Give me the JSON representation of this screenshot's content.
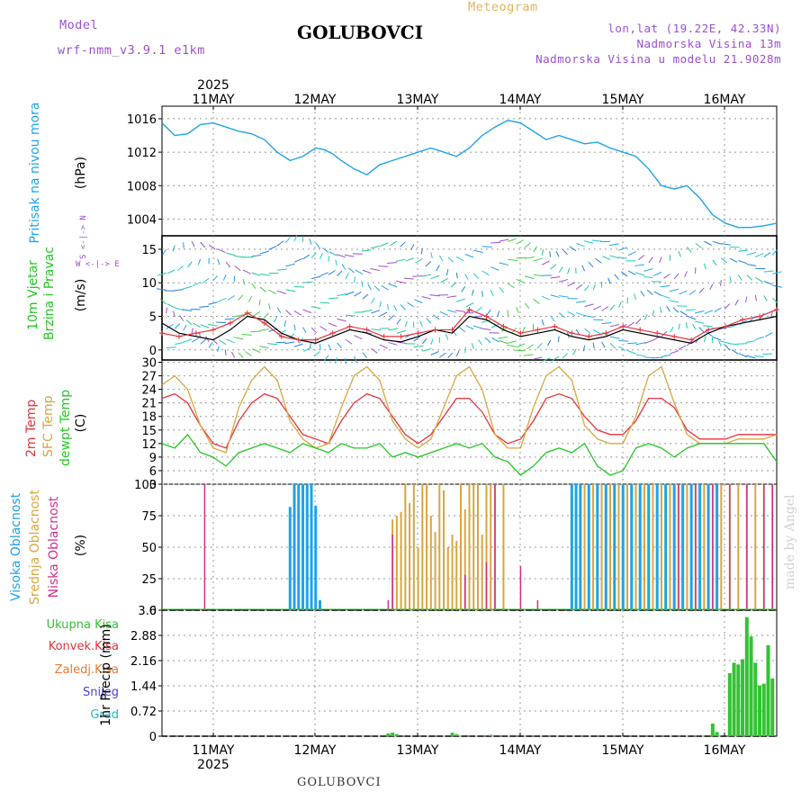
{
  "header": {
    "model_label": "Model",
    "model_name": "wrf-nmm_v3.9.1 e1km",
    "product": "Meteogram",
    "station": "GOLUBOVCI",
    "coords": "lon,lat (19.22E, 42.33N)",
    "altitude": "Nadmorska Visina 13m",
    "model_altitude": "Nadmorska Visina u modelu 21.9028m",
    "footer_station": "GOLUBOVCI",
    "watermark": "made by Angel"
  },
  "axes": {
    "year": "2025",
    "days": [
      "11MAY",
      "12MAY",
      "13MAY",
      "14MAY",
      "15MAY",
      "16MAY"
    ]
  },
  "panel_labels": {
    "pressure": [
      "Pritisak na nivou mora",
      "(hPa)"
    ],
    "wind": [
      "10m Vjetar",
      "Brzina i Pravac",
      "(m/s)",
      "W <-|-> E",
      "S <-|-> N"
    ],
    "temp": [
      "2m Temp",
      "SFC Temp",
      "dewpt Temp",
      "(C)"
    ],
    "cloud": [
      "Visoka Oblacnost",
      "Srednja Oblacnost",
      "Niska Oblacnost",
      "(%)"
    ],
    "precip": [
      "Ukupna Kisa",
      "Konvek.Kisa",
      "Zaledj.Kisa",
      "Snijeg",
      "Grad",
      "1hr Precip (mm)"
    ]
  },
  "colors": {
    "pressure": "#1ea3e8",
    "temp2m": "#e8323c",
    "sfc": "#daa540",
    "dew": "#22c822",
    "high_cloud": "#1ea3e8",
    "mid_cloud": "#daa540",
    "low_cloud": "#d0308a",
    "rain": "#33c233",
    "conv": "#e8323c",
    "frz": "#f07830",
    "snow": "#4444dd",
    "grad": "#22bbbb",
    "model_label": "#9c4fd0",
    "wind_label": "#22c822"
  },
  "chart_data": [
    {
      "type": "line",
      "name": "pressure",
      "ylabel": "(hPa)",
      "yticks": [
        1004,
        1008,
        1012,
        1016
      ],
      "ylim": [
        1002,
        1017.5
      ],
      "xlim_hours": [
        0,
        144
      ],
      "x_hours": [
        0,
        3,
        6,
        9,
        12,
        15,
        18,
        21,
        24,
        27,
        30,
        33,
        36,
        38,
        40,
        42,
        45,
        48,
        51,
        54,
        57,
        60,
        63,
        66,
        69,
        72,
        75,
        78,
        81,
        84,
        87,
        90,
        93,
        96,
        99,
        102,
        105,
        108,
        111,
        114,
        117,
        120,
        123,
        126,
        129,
        132,
        135,
        138,
        141,
        144
      ],
      "values": [
        1015.5,
        1014.0,
        1014.2,
        1015.3,
        1015.5,
        1015.0,
        1014.5,
        1014.2,
        1013.5,
        1012.0,
        1011.0,
        1011.5,
        1012.5,
        1012.3,
        1011.8,
        1011.0,
        1010.0,
        1009.3,
        1010.5,
        1011.0,
        1011.5,
        1012.0,
        1012.5,
        1012.0,
        1011.5,
        1012.5,
        1014.0,
        1015.0,
        1015.8,
        1015.5,
        1014.5,
        1013.5,
        1014.0,
        1013.5,
        1013.0,
        1013.2,
        1012.5,
        1012.0,
        1011.5,
        1010.0,
        1008.0,
        1007.6,
        1008.0,
        1006.5,
        1004.5,
        1003.5,
        1003.0,
        1003.0,
        1003.2,
        1003.5
      ]
    },
    {
      "type": "line",
      "name": "wind",
      "ylabel": "(m/s)",
      "yticks": [
        0,
        5,
        10,
        15
      ],
      "ylim": [
        -1.5,
        17
      ],
      "x_hours": [
        0,
        4,
        8,
        12,
        16,
        20,
        24,
        28,
        32,
        36,
        40,
        44,
        48,
        52,
        56,
        60,
        64,
        68,
        72,
        76,
        80,
        84,
        88,
        92,
        96,
        100,
        104,
        108,
        112,
        116,
        120,
        124,
        128,
        132,
        136,
        140,
        144
      ],
      "series": [
        {
          "values": [
            4.0,
            2.5,
            2.0,
            1.5,
            3.0,
            5.0,
            4.5,
            2.5,
            1.5,
            1.0,
            2.0,
            3.0,
            2.5,
            1.5,
            1.2,
            2.0,
            3.0,
            2.5,
            5.0,
            4.5,
            3.0,
            2.0,
            2.5,
            3.0,
            2.0,
            1.5,
            2.0,
            3.0,
            2.5,
            2.0,
            1.5,
            1.0,
            2.5,
            3.5,
            4.0,
            4.5,
            5.0
          ]
        },
        {
          "values": [
            2.5,
            2.0,
            2.5,
            3.0,
            4.0,
            5.5,
            4.0,
            2.0,
            1.5,
            1.5,
            2.5,
            3.5,
            3.0,
            2.0,
            2.0,
            2.5,
            3.0,
            3.0,
            6.0,
            5.0,
            3.5,
            2.5,
            3.0,
            3.5,
            2.5,
            2.0,
            2.5,
            3.5,
            3.0,
            2.5,
            2.0,
            1.5,
            3.0,
            3.5,
            4.5,
            5.0,
            6.0
          ]
        }
      ],
      "arrow_rows": [
        0,
        2,
        4.5,
        7,
        10,
        12.5,
        15
      ]
    },
    {
      "type": "line",
      "name": "temperature",
      "ylabel": "(C)",
      "yticks": [
        3,
        6,
        9,
        12,
        15,
        18,
        21,
        24,
        27,
        30
      ],
      "ylim": [
        3,
        30.5
      ],
      "x_hours": [
        0,
        3,
        6,
        9,
        12,
        15,
        18,
        21,
        24,
        27,
        30,
        33,
        36,
        39,
        42,
        45,
        48,
        51,
        54,
        57,
        60,
        63,
        66,
        69,
        72,
        75,
        78,
        81,
        84,
        87,
        90,
        93,
        96,
        99,
        102,
        105,
        108,
        111,
        114,
        117,
        120,
        123,
        126,
        129,
        132,
        135,
        138,
        141,
        144
      ],
      "series": [
        {
          "name": "2m Temp",
          "values": [
            22,
            23,
            21,
            16,
            12,
            11,
            17,
            21,
            23,
            22,
            18,
            14,
            13,
            12,
            17,
            21,
            23,
            22,
            18,
            14,
            12,
            14,
            18,
            22,
            22,
            19,
            14,
            12,
            13,
            17,
            22,
            23,
            22,
            18,
            15,
            14,
            14,
            17,
            22,
            22,
            20,
            15,
            13,
            13,
            13,
            14,
            14,
            14,
            14
          ]
        },
        {
          "name": "SFC Temp",
          "values": [
            25,
            27,
            24,
            16,
            11,
            10,
            20,
            26,
            29,
            26,
            17,
            13,
            11,
            12,
            20,
            27,
            29,
            26,
            17,
            13,
            11,
            13,
            20,
            27,
            29,
            24,
            14,
            11,
            11,
            20,
            27,
            29,
            26,
            16,
            13,
            12,
            12,
            18,
            27,
            29,
            21,
            14,
            12,
            12,
            12,
            13,
            13,
            13,
            14
          ]
        },
        {
          "name": "dewpt Temp",
          "values": [
            12,
            11,
            14,
            10,
            9,
            7,
            10,
            11,
            12,
            11,
            10,
            12,
            11,
            10,
            12,
            11,
            11,
            12,
            9,
            10,
            9,
            10,
            11,
            12,
            11,
            12,
            9,
            8,
            5,
            7,
            10,
            11,
            10,
            12,
            7,
            5,
            6,
            11,
            12,
            11,
            9,
            11,
            12,
            12,
            12,
            12,
            12,
            12,
            8
          ]
        }
      ]
    },
    {
      "type": "bar",
      "name": "cloud",
      "ylabel": "(%)",
      "yticks": [
        0,
        25,
        50,
        75,
        100
      ],
      "ylim": [
        0,
        100
      ],
      "series": [
        {
          "name": "Visoka Oblacnost",
          "x_hours": [
            30,
            31,
            32,
            33,
            34,
            35,
            36,
            37,
            96,
            97,
            98,
            100,
            102,
            104,
            106,
            108,
            110,
            112,
            114,
            116,
            118,
            120,
            122,
            124,
            126,
            128,
            130
          ],
          "values": [
            82,
            100,
            100,
            100,
            100,
            100,
            83,
            8,
            100,
            100,
            100,
            100,
            100,
            100,
            100,
            100,
            100,
            100,
            100,
            100,
            100,
            100,
            100,
            100,
            100,
            100,
            100
          ]
        },
        {
          "name": "Srednja Oblacnost",
          "x_hours": [
            54,
            55,
            56,
            57,
            58,
            59,
            60,
            61,
            62,
            63,
            64,
            65,
            66,
            67,
            68,
            69,
            70,
            71,
            72,
            73,
            74,
            75,
            76,
            77,
            78,
            80,
            99,
            101,
            103,
            105,
            107,
            109,
            111,
            113,
            115,
            117,
            119,
            121,
            123,
            125,
            127,
            129,
            131,
            133,
            135,
            137,
            139,
            141,
            143
          ],
          "values": [
            72,
            75,
            78,
            100,
            85,
            100,
            50,
            100,
            100,
            75,
            62,
            100,
            95,
            50,
            60,
            55,
            100,
            80,
            100,
            100,
            100,
            60,
            100,
            100,
            100,
            100,
            100,
            100,
            100,
            100,
            100,
            100,
            100,
            100,
            100,
            100,
            100,
            100,
            100,
            100,
            100,
            100,
            100,
            100,
            100,
            100,
            100,
            100,
            100
          ]
        },
        {
          "name": "Niska Oblacnost",
          "x_hours": [
            10,
            53,
            54,
            71,
            76,
            78,
            84,
            88,
            121,
            125,
            129,
            133,
            137,
            141,
            143
          ],
          "values": [
            100,
            8,
            60,
            28,
            38,
            100,
            35,
            8,
            100,
            100,
            100,
            100,
            100,
            100,
            100
          ]
        }
      ]
    },
    {
      "type": "bar",
      "name": "precip",
      "ylabel": "1hr Precip (mm)",
      "yticks": [
        0,
        0.72,
        1.44,
        2.16,
        2.88,
        3.6
      ],
      "ylim": [
        0,
        3.6
      ],
      "series": [
        {
          "name": "Ukupna Kisa",
          "x_hours": [
            53,
            54,
            55,
            68,
            69,
            77,
            129,
            130,
            133,
            134,
            135,
            136,
            137,
            138,
            139,
            140,
            141,
            142,
            143
          ],
          "values": [
            0.08,
            0.1,
            0.06,
            0.1,
            0.06,
            0.04,
            0.36,
            0.12,
            1.8,
            2.1,
            2.05,
            2.2,
            3.4,
            2.85,
            2.1,
            1.45,
            1.5,
            2.6,
            1.65
          ]
        }
      ]
    }
  ]
}
